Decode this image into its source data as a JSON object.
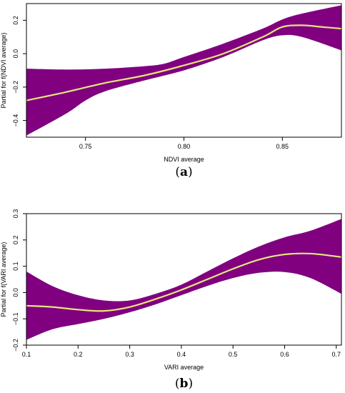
{
  "chart_data": [
    {
      "type": "area",
      "panel_label": "a",
      "xlabel": "NDVI average",
      "ylabel": "Partial for f(NDVI average)",
      "xlim": [
        0.72,
        0.88
      ],
      "ylim": [
        -0.5,
        0.3
      ],
      "xticks": [
        0.75,
        0.8,
        0.85
      ],
      "xtick_labels": [
        "0.75",
        "0.80",
        "0.85"
      ],
      "yticks": [
        -0.4,
        -0.2,
        0.0,
        0.2
      ],
      "ytick_labels": [
        "−0.4",
        "−0.2",
        "0.0",
        "0.2"
      ],
      "band_color": "#800080",
      "line_color": "#e6e67a",
      "series": [
        {
          "role": "fit",
          "x": [
            0.72,
            0.74,
            0.76,
            0.78,
            0.8,
            0.82,
            0.84,
            0.85,
            0.86,
            0.87,
            0.88
          ],
          "y": [
            -0.28,
            -0.23,
            -0.175,
            -0.13,
            -0.07,
            0.0,
            0.1,
            0.16,
            0.17,
            0.16,
            0.15
          ]
        },
        {
          "role": "upper",
          "x": [
            0.72,
            0.74,
            0.76,
            0.78,
            0.79,
            0.8,
            0.82,
            0.84,
            0.85,
            0.86,
            0.88
          ],
          "y": [
            -0.09,
            -0.095,
            -0.09,
            -0.075,
            -0.06,
            -0.02,
            0.06,
            0.15,
            0.205,
            0.24,
            0.29
          ]
        },
        {
          "role": "lower",
          "x": [
            0.72,
            0.74,
            0.75,
            0.76,
            0.78,
            0.8,
            0.82,
            0.84,
            0.85,
            0.86,
            0.88
          ],
          "y": [
            -0.49,
            -0.36,
            -0.28,
            -0.225,
            -0.16,
            -0.1,
            -0.02,
            0.08,
            0.11,
            0.1,
            0.02
          ]
        }
      ]
    },
    {
      "type": "area",
      "panel_label": "b",
      "xlabel": "VARI average",
      "ylabel": "Partial for f(VARI average)",
      "xlim": [
        0.1,
        0.71
      ],
      "ylim": [
        -0.2,
        0.3
      ],
      "xticks": [
        0.1,
        0.2,
        0.3,
        0.4,
        0.5,
        0.6,
        0.7
      ],
      "xtick_labels": [
        "0.1",
        "0.2",
        "0.3",
        "0.4",
        "0.5",
        "0.6",
        "0.7"
      ],
      "yticks": [
        -0.2,
        -0.1,
        0.0,
        0.1,
        0.2,
        0.3
      ],
      "ytick_labels": [
        "−0.2",
        "−0.1",
        "0.0",
        "0.1",
        "0.2",
        "0.3"
      ],
      "band_color": "#800080",
      "line_color": "#e6e67a",
      "series": [
        {
          "role": "fit",
          "x": [
            0.1,
            0.15,
            0.2,
            0.25,
            0.3,
            0.35,
            0.4,
            0.45,
            0.5,
            0.55,
            0.6,
            0.65,
            0.71
          ],
          "y": [
            -0.05,
            -0.055,
            -0.065,
            -0.07,
            -0.055,
            -0.025,
            0.01,
            0.05,
            0.09,
            0.125,
            0.145,
            0.148,
            0.135
          ]
        },
        {
          "role": "upper",
          "x": [
            0.1,
            0.15,
            0.2,
            0.25,
            0.3,
            0.35,
            0.4,
            0.45,
            0.5,
            0.55,
            0.6,
            0.65,
            0.71
          ],
          "y": [
            0.08,
            0.025,
            -0.01,
            -0.03,
            -0.03,
            -0.005,
            0.03,
            0.08,
            0.13,
            0.175,
            0.21,
            0.235,
            0.28
          ]
        },
        {
          "role": "lower",
          "x": [
            0.1,
            0.15,
            0.2,
            0.25,
            0.3,
            0.35,
            0.4,
            0.45,
            0.5,
            0.55,
            0.6,
            0.65,
            0.71
          ],
          "y": [
            -0.18,
            -0.14,
            -0.12,
            -0.1,
            -0.075,
            -0.045,
            -0.01,
            0.025,
            0.055,
            0.075,
            0.078,
            0.055,
            -0.005
          ]
        }
      ]
    }
  ]
}
